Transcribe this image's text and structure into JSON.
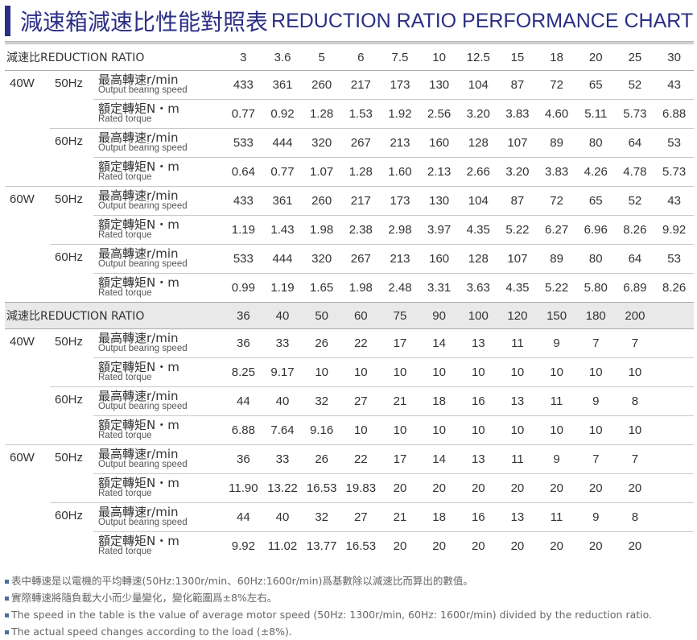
{
  "title_cn": "減速箱減速比性能對照表",
  "title_en": "REDUCTION RATIO PERFORMANCE CHART",
  "sections": [
    {
      "header_label": "減速比REDUCTION RATIO",
      "ratios": [
        "3",
        "3.6",
        "5",
        "6",
        "7.5",
        "10",
        "12.5",
        "15",
        "18",
        "20",
        "25",
        "30"
      ],
      "groups": [
        {
          "power": "40W",
          "freqs": [
            {
              "hz": "50Hz",
              "rows": [
                {
                  "label_cn": "最高轉速r/min",
                  "label_en": "Output bearing speed",
                  "values": [
                    "433",
                    "361",
                    "260",
                    "217",
                    "173",
                    "130",
                    "104",
                    "87",
                    "72",
                    "65",
                    "52",
                    "43"
                  ]
                },
                {
                  "label_cn": "額定轉矩N・m",
                  "label_en": "Rated torque",
                  "values": [
                    "0.77",
                    "0.92",
                    "1.28",
                    "1.53",
                    "1.92",
                    "2.56",
                    "3.20",
                    "3.83",
                    "4.60",
                    "5.11",
                    "5.73",
                    "6.88"
                  ]
                }
              ]
            },
            {
              "hz": "60Hz",
              "rows": [
                {
                  "label_cn": "最高轉速r/min",
                  "label_en": "Output bearing speed",
                  "values": [
                    "533",
                    "444",
                    "320",
                    "267",
                    "213",
                    "160",
                    "128",
                    "107",
                    "89",
                    "80",
                    "64",
                    "53"
                  ]
                },
                {
                  "label_cn": "額定轉矩N・m",
                  "label_en": "Rated torque",
                  "values": [
                    "0.64",
                    "0.77",
                    "1.07",
                    "1.28",
                    "1.60",
                    "2.13",
                    "2.66",
                    "3.20",
                    "3.83",
                    "4.26",
                    "4.78",
                    "5.73"
                  ]
                }
              ]
            }
          ]
        },
        {
          "power": "60W",
          "freqs": [
            {
              "hz": "50Hz",
              "rows": [
                {
                  "label_cn": "最高轉速r/min",
                  "label_en": "Output bearing speed",
                  "values": [
                    "433",
                    "361",
                    "260",
                    "217",
                    "173",
                    "130",
                    "104",
                    "87",
                    "72",
                    "65",
                    "52",
                    "43"
                  ]
                },
                {
                  "label_cn": "額定轉矩N・m",
                  "label_en": "Rated torque",
                  "values": [
                    "1.19",
                    "1.43",
                    "1.98",
                    "2.38",
                    "2.98",
                    "3.97",
                    "4.35",
                    "5.22",
                    "6.27",
                    "6.96",
                    "8.26",
                    "9.92"
                  ]
                }
              ]
            },
            {
              "hz": "60Hz",
              "rows": [
                {
                  "label_cn": "最高轉速r/min",
                  "label_en": "Output bearing speed",
                  "values": [
                    "533",
                    "444",
                    "320",
                    "267",
                    "213",
                    "160",
                    "128",
                    "107",
                    "89",
                    "80",
                    "64",
                    "53"
                  ]
                },
                {
                  "label_cn": "額定轉矩N・m",
                  "label_en": "Rated torque",
                  "values": [
                    "0.99",
                    "1.19",
                    "1.65",
                    "1.98",
                    "2.48",
                    "3.31",
                    "3.63",
                    "4.35",
                    "5.22",
                    "5.80",
                    "6.89",
                    "8.26"
                  ]
                }
              ]
            }
          ]
        }
      ]
    },
    {
      "header_label": "減速比REDUCTION RATIO",
      "ratios": [
        "36",
        "40",
        "50",
        "60",
        "75",
        "90",
        "100",
        "120",
        "150",
        "180",
        "200"
      ],
      "groups": [
        {
          "power": "40W",
          "freqs": [
            {
              "hz": "50Hz",
              "rows": [
                {
                  "label_cn": "最高轉速r/min",
                  "label_en": "Output bearing speed",
                  "values": [
                    "36",
                    "33",
                    "26",
                    "22",
                    "17",
                    "14",
                    "13",
                    "11",
                    "9",
                    "7",
                    "7"
                  ]
                },
                {
                  "label_cn": "額定轉矩N・m",
                  "label_en": "Rated torque",
                  "values": [
                    "8.25",
                    "9.17",
                    "10",
                    "10",
                    "10",
                    "10",
                    "10",
                    "10",
                    "10",
                    "10",
                    "10"
                  ]
                }
              ]
            },
            {
              "hz": "60Hz",
              "rows": [
                {
                  "label_cn": "最高轉速r/min",
                  "label_en": "Output bearing speed",
                  "values": [
                    "44",
                    "40",
                    "32",
                    "27",
                    "21",
                    "18",
                    "16",
                    "13",
                    "11",
                    "9",
                    "8"
                  ]
                },
                {
                  "label_cn": "額定轉矩N・m",
                  "label_en": "Rated torque",
                  "values": [
                    "6.88",
                    "7.64",
                    "9.16",
                    "10",
                    "10",
                    "10",
                    "10",
                    "10",
                    "10",
                    "10",
                    "10"
                  ]
                }
              ]
            }
          ]
        },
        {
          "power": "60W",
          "freqs": [
            {
              "hz": "50Hz",
              "rows": [
                {
                  "label_cn": "最高轉速r/min",
                  "label_en": "Output bearing speed",
                  "values": [
                    "36",
                    "33",
                    "26",
                    "22",
                    "17",
                    "14",
                    "13",
                    "11",
                    "9",
                    "7",
                    "7"
                  ]
                },
                {
                  "label_cn": "額定轉矩N・m",
                  "label_en": "Rated torque",
                  "values": [
                    "11.90",
                    "13.22",
                    "16.53",
                    "19.83",
                    "20",
                    "20",
                    "20",
                    "20",
                    "20",
                    "20",
                    "20"
                  ]
                }
              ]
            },
            {
              "hz": "60Hz",
              "rows": [
                {
                  "label_cn": "最高轉速r/min",
                  "label_en": "Output bearing speed",
                  "values": [
                    "44",
                    "40",
                    "32",
                    "27",
                    "21",
                    "18",
                    "16",
                    "13",
                    "11",
                    "9",
                    "8"
                  ]
                },
                {
                  "label_cn": "額定轉矩N・m",
                  "label_en": "Rated torque",
                  "values": [
                    "9.92",
                    "11.02",
                    "13.77",
                    "16.53",
                    "20",
                    "20",
                    "20",
                    "20",
                    "20",
                    "20",
                    "20"
                  ]
                }
              ]
            }
          ]
        }
      ]
    }
  ],
  "notes": [
    "表中轉速是以電機的平均轉速(50Hz:1300r/min、60Hz:1600r/min)爲基數除以減速比而算出的數值。",
    "實際轉速將隨負載大小而少量變化，變化範圍爲±8%左右。",
    "The speed in the table is the value of average motor speed (50Hz: 1300r/min, 60Hz: 1600r/min) divided by the reduction ratio.",
    "The actual speed changes according to the load (±8%)."
  ]
}
